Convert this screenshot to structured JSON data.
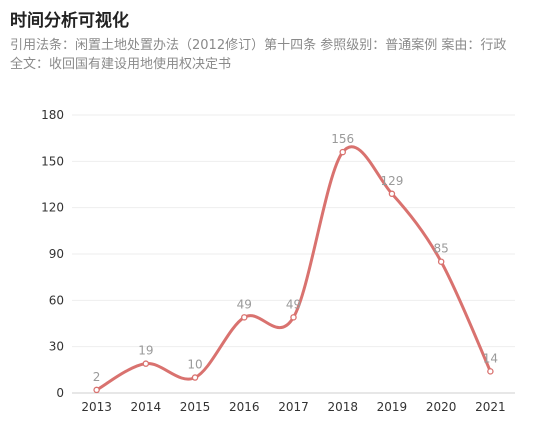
{
  "header": {
    "title": "时间分析可视化",
    "subtitle": "引用法条：闲置土地处置办法（2012修订）第十四条 参照级别：普通案例 案由：行政 全文：收回国有建设用地使用权决定书"
  },
  "chart_data": {
    "type": "line",
    "smooth": true,
    "categories": [
      "2013",
      "2014",
      "2015",
      "2016",
      "2017",
      "2018",
      "2019",
      "2020",
      "2021"
    ],
    "values": [
      2,
      19,
      10,
      49,
      49,
      156,
      129,
      85,
      14
    ],
    "ylim": [
      0,
      180
    ],
    "yticks": [
      0,
      30,
      60,
      90,
      120,
      150,
      180
    ],
    "grid": true,
    "line_color": "#d9726f",
    "grid_color": "#eeeeee",
    "axis_color": "#cfcfcf"
  }
}
